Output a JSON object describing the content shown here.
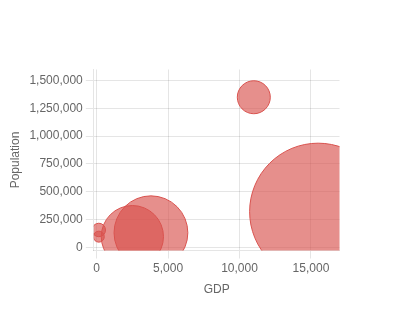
{
  "chart_data": {
    "type": "bubble",
    "xlabel": "GDP",
    "ylabel": "Population",
    "x": [
      15500,
      11000,
      3800,
      2500,
      150,
      150
    ],
    "values": [
      320000,
      1350000,
      130000,
      95000,
      155000,
      95000
    ],
    "sizes": [
      15500,
      900,
      4500,
      3200,
      150,
      100
    ],
    "color": "#d9534f",
    "xlim": [
      -200,
      17000
    ],
    "xticks": [
      0,
      {
        "value": 5000,
        "label": "5,000"
      },
      {
        "value": 10000,
        "label": "10,000"
      },
      {
        "value": 15000,
        "label": "15,000"
      }
    ],
    "ylim": [
      -30000,
      1600000
    ],
    "yticks": [
      0,
      {
        "value": 250000,
        "label": "250,000"
      },
      {
        "value": 500000,
        "label": "500,000"
      },
      {
        "value": 750000,
        "label": "750,000"
      },
      {
        "value": 1000000,
        "label": "1,000,000"
      },
      {
        "value": 1250000,
        "label": "1,250,000"
      },
      {
        "value": 1500000,
        "label": "1,500,000"
      }
    ],
    "grid": true
  }
}
